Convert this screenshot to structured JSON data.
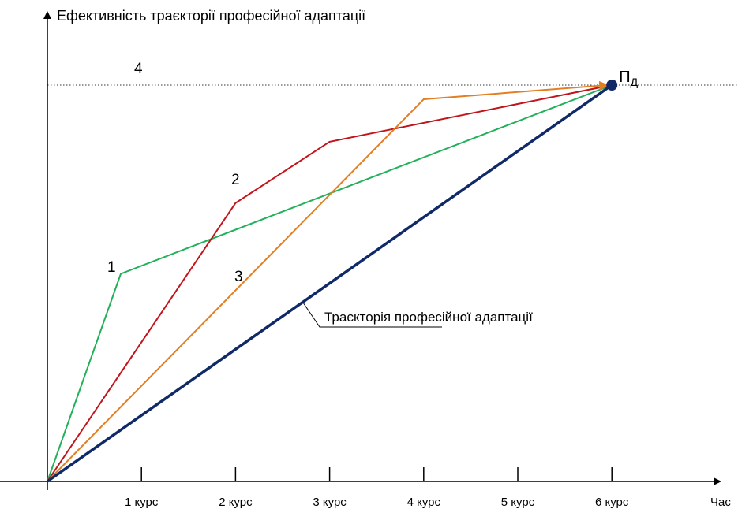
{
  "chart_data": {
    "type": "line",
    "ylabel": "Ефективність траєкторії професійної адаптації",
    "xlabel": "Час",
    "categories": [
      "1 курс",
      "2 курс",
      "3 курс",
      "4 курс",
      "5 курс",
      "6 курс"
    ],
    "xlim": [
      0,
      7
    ],
    "ylim": [
      0,
      100
    ],
    "grid": false,
    "target_level": {
      "label": "4",
      "y": 84
    },
    "endpoint": {
      "label": "П",
      "subscript": "Д",
      "x": 6,
      "y": 84
    },
    "main_trajectory_label": "Траєкторія професійної адаптації",
    "colors": {
      "series_1": "#22b05a",
      "series_2": "#c0151b",
      "series_3": "#e37f22",
      "main": "#102a68",
      "axes": "#000000"
    },
    "series": [
      {
        "name": "1",
        "x": [
          0,
          0.78,
          6
        ],
        "y": [
          0,
          44,
          84
        ]
      },
      {
        "name": "2",
        "x": [
          0,
          2.0,
          3.0,
          6
        ],
        "y": [
          0,
          59,
          72,
          84
        ]
      },
      {
        "name": "3",
        "x": [
          0,
          4.0,
          6
        ],
        "y": [
          0,
          81,
          84
        ]
      },
      {
        "name": "",
        "x": [
          0,
          6
        ],
        "y": [
          0,
          84
        ]
      }
    ]
  }
}
